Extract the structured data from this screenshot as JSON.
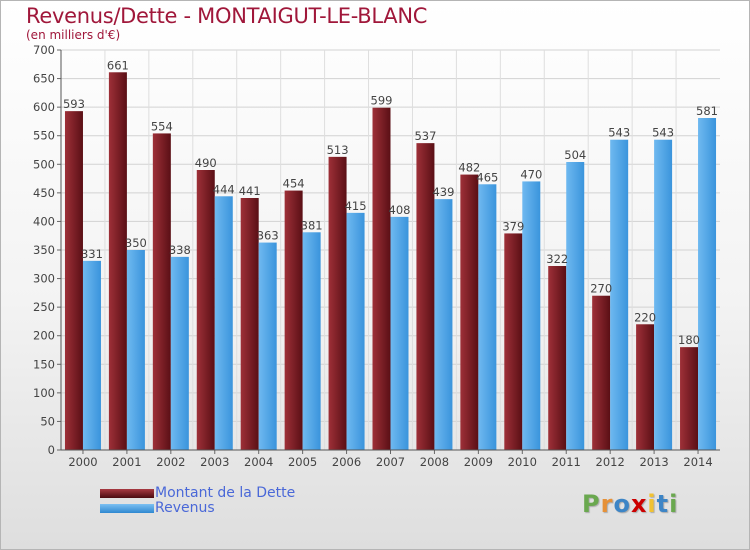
{
  "chart_data": {
    "type": "bar",
    "title": "Revenus/Dette - MONTAIGUT-LE-BLANC",
    "subtitle": "(en milliers d'€)",
    "categories": [
      "2000",
      "2001",
      "2002",
      "2003",
      "2004",
      "2005",
      "2006",
      "2007",
      "2008",
      "2009",
      "2010",
      "2011",
      "2012",
      "2013",
      "2014"
    ],
    "series": [
      {
        "name": "Montant de la Dette",
        "color": "#7a1c22",
        "values": [
          593,
          661,
          554,
          490,
          441,
          454,
          513,
          599,
          537,
          482,
          379,
          322,
          270,
          220,
          180
        ]
      },
      {
        "name": "Revenus",
        "color": "#4aa3e8",
        "values": [
          331,
          350,
          338,
          444,
          363,
          381,
          415,
          408,
          439,
          465,
          470,
          504,
          543,
          543,
          581
        ]
      }
    ],
    "yticks": [
      0,
      50,
      100,
      150,
      200,
      250,
      300,
      350,
      400,
      450,
      500,
      550,
      600,
      650,
      700
    ],
    "ylim": [
      0,
      700
    ],
    "grid": true,
    "legend_position": "bottom-left"
  },
  "logo": {
    "letters": [
      "P",
      "r",
      "o",
      "x",
      "i",
      "t",
      "i"
    ],
    "colors": [
      "#6aa84f",
      "#e69138",
      "#3d85c6",
      "#cc0000",
      "#f1c232",
      "#3d85c6",
      "#6aa84f"
    ]
  }
}
